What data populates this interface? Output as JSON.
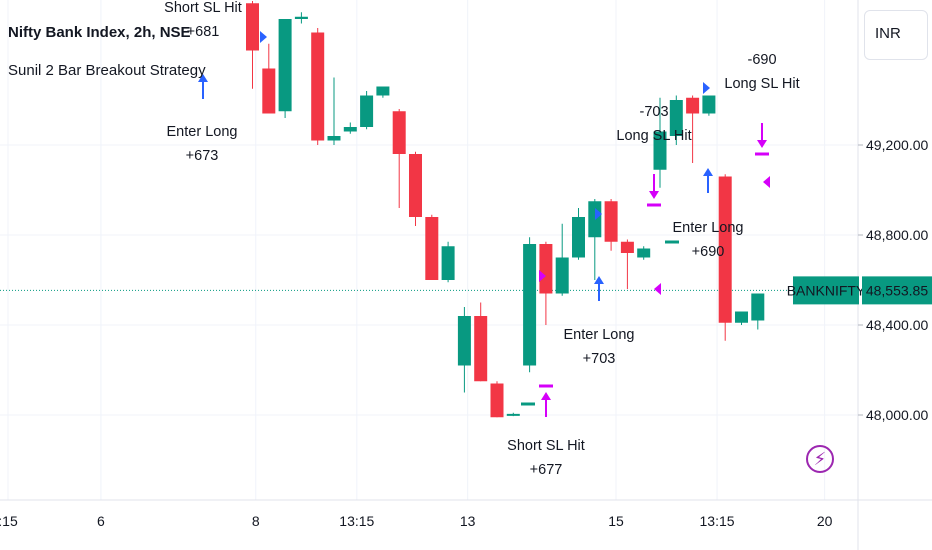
{
  "header": {
    "title": "Nifty Bank Index, 2h, NSE",
    "strategy": "Sunil 2 Bar Breakout Strategy",
    "currency": "INR"
  },
  "price_tag": {
    "symbol": "BANKNIFTY",
    "value": "48,553.85",
    "price": 48553.85
  },
  "colors": {
    "up": "#089981",
    "down": "#f23645",
    "long": "#2962ff",
    "exit": "#d500f9"
  },
  "icons": {
    "bolt": "lightning-bolt-icon"
  },
  "chart_data": {
    "type": "candlestick",
    "y_ticks": [
      {
        "label": "49,200.00",
        "value": 49200
      },
      {
        "label": "48,800.00",
        "value": 48800
      },
      {
        "label": "48,400.00",
        "value": 48400
      },
      {
        "label": "48,000.00",
        "value": 48000
      }
    ],
    "x_ticks": [
      {
        "label": ":15",
        "at": 0
      },
      {
        "label": "6",
        "at": 5.7
      },
      {
        "label": "8",
        "at": 15.2
      },
      {
        "label": "13:15",
        "at": 21.4
      },
      {
        "label": "13",
        "at": 28.2
      },
      {
        "label": "15",
        "at": 37.3
      },
      {
        "label": "13:15",
        "at": 43.5
      },
      {
        "label": "20",
        "at": 50.1
      }
    ],
    "candles": [
      {
        "i": 15,
        "o": 49830,
        "h": 49840,
        "l": 49450,
        "c": 49620
      },
      {
        "i": 16,
        "o": 49540,
        "h": 49650,
        "l": 49350,
        "c": 49340
      },
      {
        "i": 17,
        "o": 49350,
        "h": 49760,
        "l": 49320,
        "c": 49760
      },
      {
        "i": 18,
        "o": 49760,
        "h": 49790,
        "l": 49740,
        "c": 49770
      },
      {
        "i": 19,
        "o": 49700,
        "h": 49720,
        "l": 49200,
        "c": 49220
      },
      {
        "i": 20,
        "o": 49220,
        "h": 49500,
        "l": 49200,
        "c": 49240
      },
      {
        "i": 21,
        "o": 49260,
        "h": 49300,
        "l": 49250,
        "c": 49280
      },
      {
        "i": 22,
        "o": 49280,
        "h": 49440,
        "l": 49270,
        "c": 49420
      },
      {
        "i": 23,
        "o": 49420,
        "h": 49460,
        "l": 49410,
        "c": 49460
      },
      {
        "i": 24,
        "o": 49350,
        "h": 49360,
        "l": 48920,
        "c": 49160
      },
      {
        "i": 25,
        "o": 49160,
        "h": 49170,
        "l": 48840,
        "c": 48880
      },
      {
        "i": 26,
        "o": 48880,
        "h": 48890,
        "l": 48600,
        "c": 48600
      },
      {
        "i": 27,
        "o": 48600,
        "h": 48770,
        "l": 48590,
        "c": 48750
      },
      {
        "i": 28,
        "o": 48220,
        "h": 48480,
        "l": 48100,
        "c": 48440
      },
      {
        "i": 29,
        "o": 48440,
        "h": 48500,
        "l": 48150,
        "c": 48150
      },
      {
        "i": 30,
        "o": 48140,
        "h": 48150,
        "l": 47990,
        "c": 47990
      },
      {
        "i": 31,
        "o": 48000,
        "h": 48010,
        "l": 47995,
        "c": 48005
      },
      {
        "i": 32,
        "o": 48220,
        "h": 48790,
        "l": 48190,
        "c": 48760
      },
      {
        "i": 33,
        "o": 48760,
        "h": 48770,
        "l": 48400,
        "c": 48540
      },
      {
        "i": 34,
        "o": 48540,
        "h": 48850,
        "l": 48530,
        "c": 48700
      },
      {
        "i": 35,
        "o": 48700,
        "h": 48920,
        "l": 48690,
        "c": 48880
      },
      {
        "i": 36,
        "o": 48790,
        "h": 48960,
        "l": 48600,
        "c": 48950
      },
      {
        "i": 37,
        "o": 48950,
        "h": 48960,
        "l": 48730,
        "c": 48770
      },
      {
        "i": 38,
        "o": 48770,
        "h": 48780,
        "l": 48560,
        "c": 48720
      },
      {
        "i": 39,
        "o": 48700,
        "h": 48750,
        "l": 48690,
        "c": 48740
      },
      {
        "i": 40,
        "o": 49090,
        "h": 49410,
        "l": 49010,
        "c": 49260
      },
      {
        "i": 41,
        "o": 49240,
        "h": 49420,
        "l": 49200,
        "c": 49400
      },
      {
        "i": 42,
        "o": 49410,
        "h": 49420,
        "l": 49120,
        "c": 49340
      },
      {
        "i": 43,
        "o": 49340,
        "h": 49420,
        "l": 49330,
        "c": 49420
      },
      {
        "i": 44,
        "o": 49060,
        "h": 49070,
        "l": 48330,
        "c": 48410
      },
      {
        "i": 45,
        "o": 48410,
        "h": 48460,
        "l": 48400,
        "c": 48460
      },
      {
        "i": 46,
        "o": 48420,
        "h": 48540,
        "l": 48380,
        "c": 48540
      }
    ],
    "annotations": [
      {
        "lines": [
          "Short SL Hit",
          "+681"
        ],
        "at": 15.5,
        "pos": "above",
        "color": "purple"
      },
      {
        "lines": [
          "Enter Long",
          "+673"
        ],
        "at": 12.5,
        "pos": "below",
        "color": "blue"
      },
      {
        "lines": [
          "Short SL Hit",
          "+677"
        ],
        "at": 32,
        "pos": "below",
        "color": "purple"
      },
      {
        "lines": [
          "Enter Long",
          "+703"
        ],
        "at": 35,
        "pos": "below",
        "color": "blue"
      },
      {
        "lines": [
          "-703",
          "Long SL Hit"
        ],
        "at": 38,
        "pos": "above",
        "color": "purple"
      },
      {
        "lines": [
          "Enter Long",
          "+690"
        ],
        "at": 41.5,
        "pos": "below",
        "color": "blue"
      },
      {
        "lines": [
          "-690",
          "Long SL Hit"
        ],
        "at": 44,
        "pos": "above",
        "color": "purple"
      }
    ]
  }
}
